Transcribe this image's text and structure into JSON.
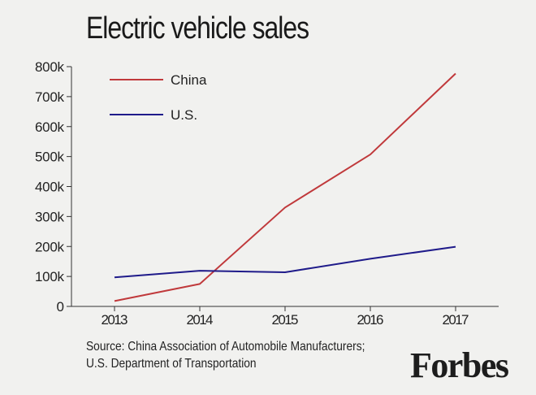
{
  "chart_data": {
    "type": "line",
    "title": "Electric vehicle sales",
    "categories": [
      "2013",
      "2014",
      "2015",
      "2016",
      "2017"
    ],
    "series": [
      {
        "name": "China",
        "color": "#c0393b",
        "values": [
          18000,
          75000,
          330000,
          507000,
          777000
        ]
      },
      {
        "name": "U.S.",
        "color": "#1f1b8a",
        "values": [
          97000,
          119000,
          114000,
          159000,
          199000
        ]
      }
    ],
    "y_ticks": [
      {
        "value": 0,
        "label": "0"
      },
      {
        "value": 100000,
        "label": "100k"
      },
      {
        "value": 200000,
        "label": "200k"
      },
      {
        "value": 300000,
        "label": "300k"
      },
      {
        "value": 400000,
        "label": "400k"
      },
      {
        "value": 500000,
        "label": "500k"
      },
      {
        "value": 600000,
        "label": "600k"
      },
      {
        "value": 700000,
        "label": "700k"
      },
      {
        "value": 800000,
        "label": "800k"
      }
    ],
    "ylim": [
      0,
      800000
    ],
    "xlabel": "",
    "ylabel": "",
    "grid": false,
    "legend_position": "top-left"
  },
  "source_note": {
    "line1": "Source: China Association of Automobile Manufacturers;",
    "line2": "U.S. Department of Transportation"
  },
  "brand": "Forbes"
}
